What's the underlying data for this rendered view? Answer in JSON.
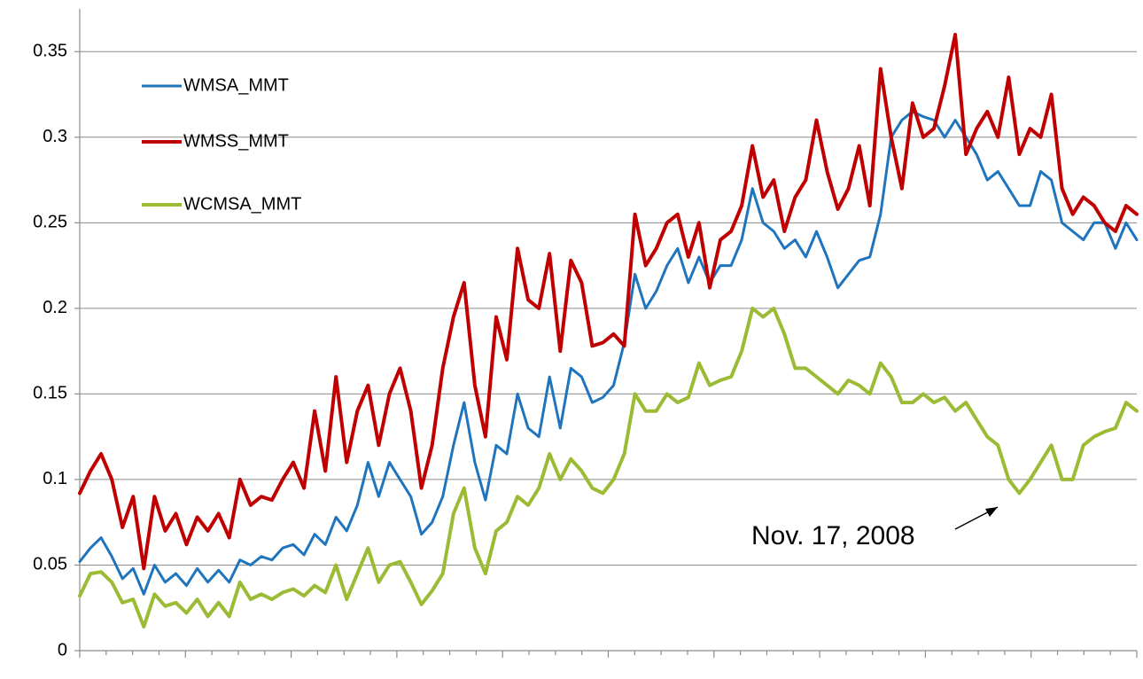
{
  "chart_data": {
    "type": "line",
    "ylim": [
      0,
      0.375
    ],
    "yticks": [
      0,
      0.05,
      0.1,
      0.15,
      0.2,
      0.25,
      0.3,
      0.35
    ],
    "grid": true,
    "legend": "upper-left",
    "annotation": "Nov. 17, 2008",
    "series": [
      {
        "name": "WMSA_MMT",
        "color": "#1f74be",
        "width": 3,
        "values": [
          0.052,
          0.06,
          0.066,
          0.055,
          0.042,
          0.048,
          0.033,
          0.05,
          0.04,
          0.045,
          0.038,
          0.048,
          0.04,
          0.047,
          0.04,
          0.053,
          0.05,
          0.055,
          0.053,
          0.06,
          0.062,
          0.056,
          0.068,
          0.062,
          0.078,
          0.07,
          0.085,
          0.11,
          0.09,
          0.11,
          0.1,
          0.09,
          0.068,
          0.075,
          0.09,
          0.12,
          0.145,
          0.11,
          0.088,
          0.12,
          0.115,
          0.15,
          0.13,
          0.125,
          0.16,
          0.13,
          0.165,
          0.16,
          0.145,
          0.148,
          0.155,
          0.18,
          0.22,
          0.2,
          0.21,
          0.225,
          0.235,
          0.215,
          0.23,
          0.215,
          0.225,
          0.225,
          0.24,
          0.27,
          0.25,
          0.245,
          0.235,
          0.24,
          0.23,
          0.245,
          0.23,
          0.212,
          0.22,
          0.228,
          0.23,
          0.255,
          0.3,
          0.31,
          0.315,
          0.312,
          0.31,
          0.3,
          0.31,
          0.3,
          0.29,
          0.275,
          0.28,
          0.27,
          0.26,
          0.26,
          0.28,
          0.275,
          0.25,
          0.245,
          0.24,
          0.25,
          0.25,
          0.235,
          0.25,
          0.24
        ]
      },
      {
        "name": "WMSS_MMT",
        "color": "#c00000",
        "width": 4,
        "values": [
          0.092,
          0.105,
          0.115,
          0.1,
          0.072,
          0.09,
          0.048,
          0.09,
          0.07,
          0.08,
          0.062,
          0.078,
          0.07,
          0.08,
          0.066,
          0.1,
          0.085,
          0.09,
          0.088,
          0.1,
          0.11,
          0.095,
          0.14,
          0.105,
          0.16,
          0.11,
          0.14,
          0.155,
          0.12,
          0.15,
          0.165,
          0.14,
          0.095,
          0.12,
          0.165,
          0.195,
          0.215,
          0.155,
          0.125,
          0.195,
          0.17,
          0.235,
          0.205,
          0.2,
          0.232,
          0.175,
          0.228,
          0.215,
          0.178,
          0.18,
          0.185,
          0.178,
          0.255,
          0.225,
          0.235,
          0.25,
          0.255,
          0.23,
          0.25,
          0.212,
          0.24,
          0.245,
          0.26,
          0.295,
          0.265,
          0.275,
          0.245,
          0.265,
          0.275,
          0.31,
          0.28,
          0.258,
          0.27,
          0.295,
          0.26,
          0.34,
          0.3,
          0.27,
          0.32,
          0.3,
          0.305,
          0.33,
          0.36,
          0.29,
          0.305,
          0.315,
          0.3,
          0.335,
          0.29,
          0.305,
          0.3,
          0.325,
          0.27,
          0.255,
          0.265,
          0.26,
          0.25,
          0.245,
          0.26,
          0.255
        ]
      },
      {
        "name": "WCMSA_MMT",
        "color": "#9bbb35",
        "width": 4,
        "values": [
          0.032,
          0.045,
          0.046,
          0.04,
          0.028,
          0.03,
          0.014,
          0.033,
          0.026,
          0.028,
          0.022,
          0.03,
          0.02,
          0.028,
          0.02,
          0.04,
          0.03,
          0.033,
          0.03,
          0.034,
          0.036,
          0.032,
          0.038,
          0.034,
          0.05,
          0.03,
          0.045,
          0.06,
          0.04,
          0.05,
          0.052,
          0.04,
          0.027,
          0.035,
          0.045,
          0.08,
          0.095,
          0.06,
          0.045,
          0.07,
          0.075,
          0.09,
          0.085,
          0.095,
          0.115,
          0.1,
          0.112,
          0.105,
          0.095,
          0.092,
          0.1,
          0.115,
          0.15,
          0.14,
          0.14,
          0.15,
          0.145,
          0.148,
          0.168,
          0.155,
          0.158,
          0.16,
          0.175,
          0.2,
          0.195,
          0.2,
          0.185,
          0.165,
          0.165,
          0.16,
          0.155,
          0.15,
          0.158,
          0.155,
          0.15,
          0.168,
          0.16,
          0.145,
          0.145,
          0.15,
          0.145,
          0.148,
          0.14,
          0.145,
          0.135,
          0.125,
          0.12,
          0.1,
          0.092,
          0.1,
          0.11,
          0.12,
          0.1,
          0.1,
          0.12,
          0.125,
          0.128,
          0.13,
          0.145,
          0.14
        ]
      }
    ]
  }
}
